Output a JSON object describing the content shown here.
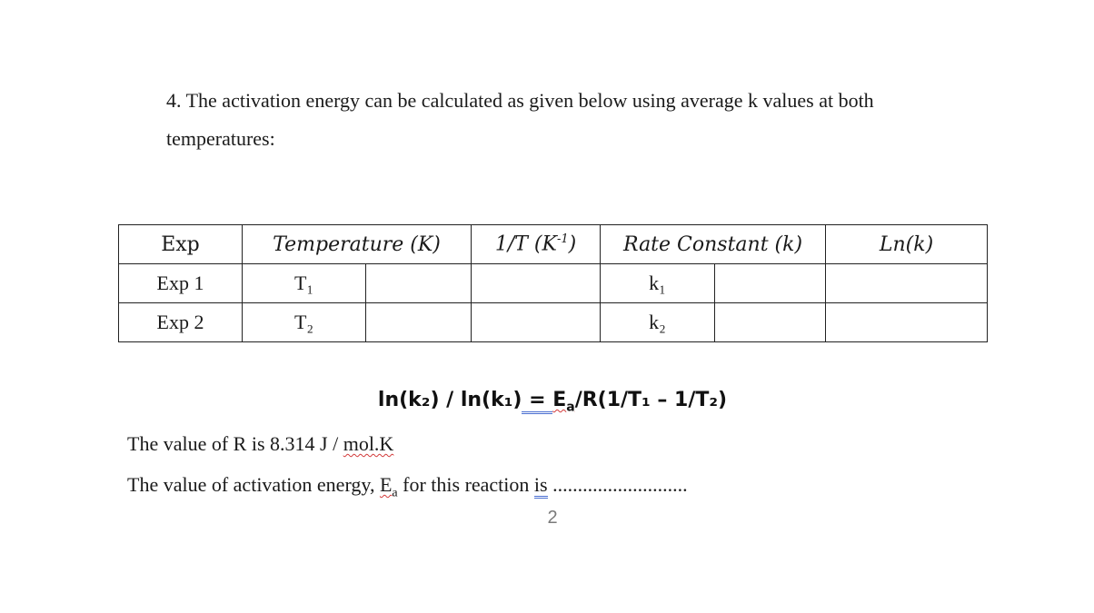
{
  "question": {
    "text_line1": "4. The activation energy can be calculated as given below using average k values at both",
    "text_line2": "temperatures:"
  },
  "table": {
    "headers": [
      "Exp",
      "Temperature (K)",
      "1/T (K",
      "-1",
      ")",
      "Rate Constant (k)",
      "Ln(k)"
    ],
    "rows": [
      {
        "exp": "Exp 1",
        "temp_symbol": "T₁",
        "temp_value": "",
        "inv_t": "",
        "k_symbol": "k₁",
        "k_value": "",
        "ln_k": ""
      },
      {
        "exp": "Exp 2",
        "temp_symbol": "T₂",
        "temp_value": "",
        "inv_t": "",
        "k_symbol": "k₂",
        "k_value": "",
        "ln_k": ""
      }
    ]
  },
  "equation": {
    "lhs": "ln(k₂) / ln(k₁)",
    "equals": " = ",
    "ea": "E",
    "ea_sub": "a",
    "rhs": "/R(1/T₁ – 1/T₂)"
  },
  "r_value": {
    "prefix": "The value of R is 8.314 J / ",
    "unit": "mol.K"
  },
  "ea_answer": {
    "prefix": "The value of activation energy, ",
    "ea": "E",
    "ea_sub": "a",
    "middle": " for this reaction ",
    "is": "is",
    "dots": "  ..........................."
  },
  "page_number": "2"
}
